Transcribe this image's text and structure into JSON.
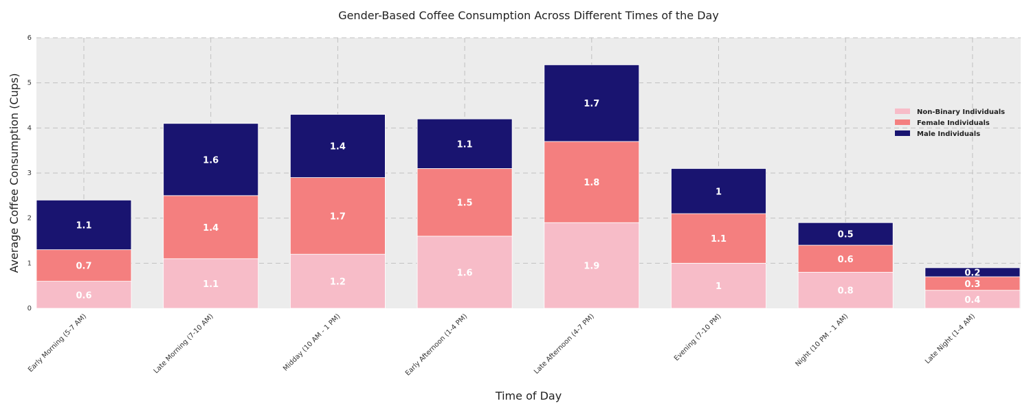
{
  "chart_data": {
    "type": "bar",
    "stacked": true,
    "title": "Gender-Based Coffee Consumption Across Different Times of the Day",
    "xlabel": "Time of Day",
    "ylabel": "Average Coffee Consumption (Cups)",
    "ylim": [
      0,
      6
    ],
    "yticks": [
      "0",
      "1",
      "2",
      "3",
      "4",
      "5",
      "6"
    ],
    "grid": true,
    "legend_position": "right",
    "categories": [
      "Early Morning (5-7 AM)",
      "Late Morning (7-10 AM)",
      "Midday (10 AM - 1 PM)",
      "Early Afternoon (1-4 PM)",
      "Late Afternoon (4-7 PM)",
      "Evening (7-10 PM)",
      "Night (10 PM - 1 AM)",
      "Late Night (1-4 AM)"
    ],
    "series": [
      {
        "name": "Non-Binary Individuals",
        "color": "#f7bcc8",
        "values": [
          0.6,
          1.1,
          1.2,
          1.6,
          1.9,
          1,
          0.8,
          0.4
        ]
      },
      {
        "name": "Female Individuals",
        "color": "#f47f7f",
        "values": [
          0.7,
          1.4,
          1.7,
          1.5,
          1.8,
          1.1,
          0.6,
          0.3
        ]
      },
      {
        "name": "Male Individuals",
        "color": "#191470",
        "values": [
          1.1,
          1.6,
          1.4,
          1.1,
          1.7,
          1,
          0.5,
          0.2
        ]
      }
    ],
    "colors": {
      "plot_background": "#ececec",
      "grid": "#c0c0c0"
    }
  }
}
